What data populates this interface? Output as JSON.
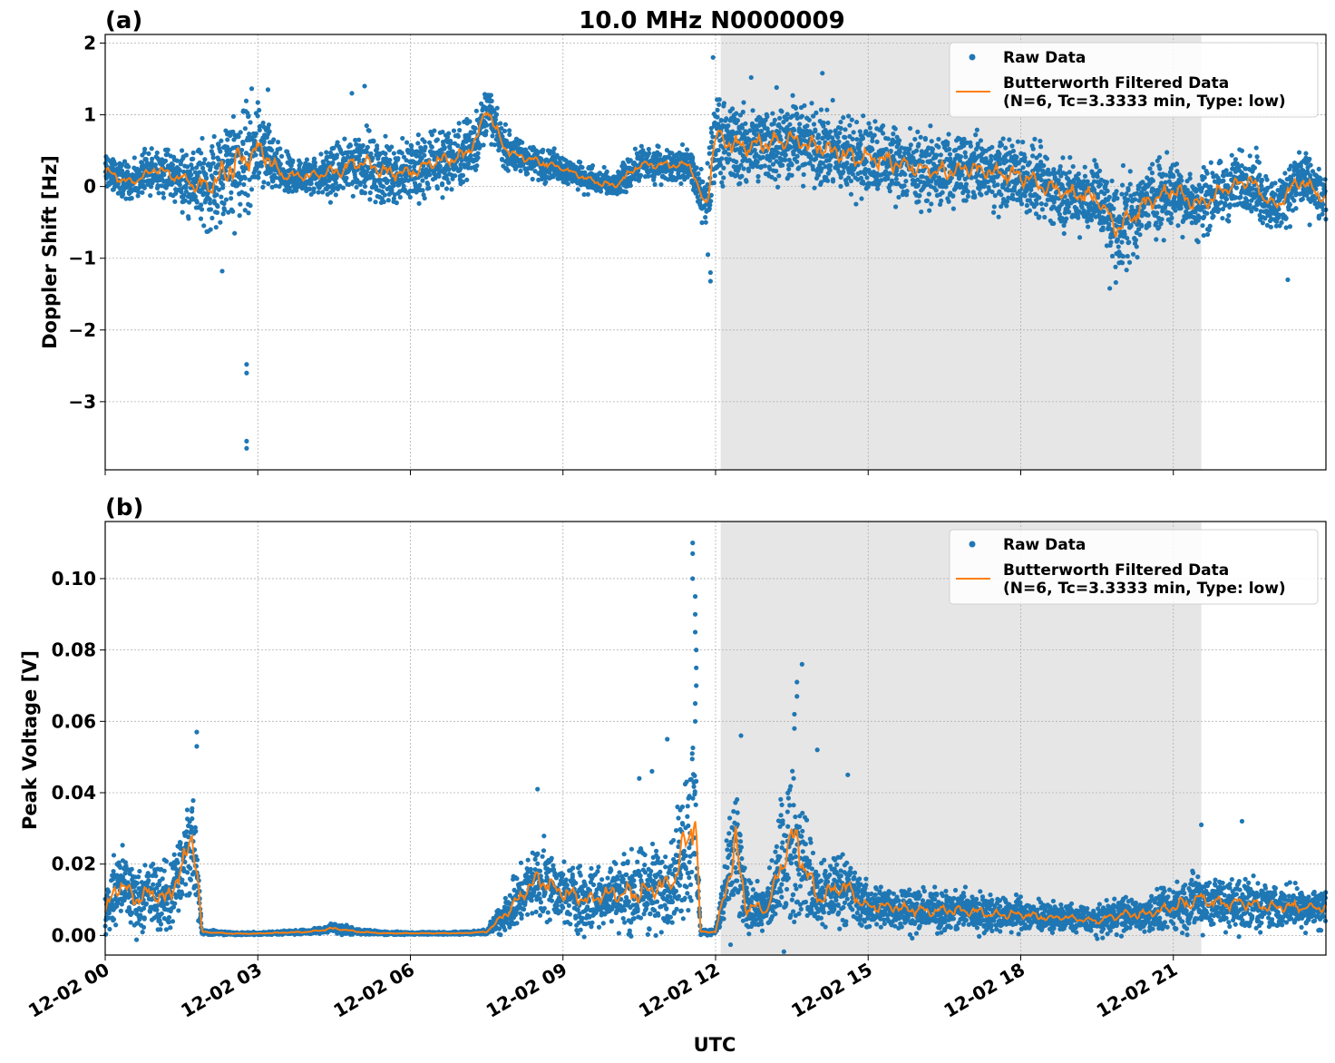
{
  "figure": {
    "title": "10.0 MHz N0000009",
    "xlabel": "UTC"
  },
  "colors": {
    "raw": "#1f77b4",
    "filtered": "#ff7f0e",
    "shade": "#e6e6e6",
    "grid": "#b0b0b0"
  },
  "legend": {
    "raw_label": "Raw Data",
    "filtered_label_line1": "Butterworth Filtered Data",
    "filtered_label_line2": "(N=6, Tc=3.3333 min, Type: low)"
  },
  "chart_data": [
    {
      "type": "scatter",
      "panel_label": "(a)",
      "ylabel": "Doppler Shift [Hz]",
      "xlim_hours": [
        0,
        24
      ],
      "ylim": [
        -3.95,
        2.12
      ],
      "yticks": [
        2,
        1,
        0,
        -1,
        -2,
        -3
      ],
      "ytick_labels": [
        "2",
        "1",
        "0",
        "−1",
        "−2",
        "−3"
      ],
      "grid": true,
      "legend_position": "top-right",
      "shaded_interval_hours": [
        12.1,
        21.55
      ],
      "series": [
        {
          "name": "Raw Data",
          "kind": "points",
          "x_hours": [
            0,
            0.5,
            1,
            1.5,
            2,
            2.3,
            2.5,
            2.75,
            3,
            3.5,
            4,
            4.5,
            5,
            5.5,
            6,
            6.5,
            7,
            7.3,
            7.5,
            7.8,
            8,
            8.5,
            9,
            9.5,
            10,
            10.5,
            11,
            11.5,
            11.8,
            11.9,
            12,
            12.5,
            13,
            13.5,
            14,
            14.5,
            15,
            15.5,
            16,
            16.5,
            17,
            17.5,
            18,
            18.5,
            19,
            19.5,
            19.9,
            20.5,
            21,
            21.5,
            22,
            22.5,
            23,
            23.5,
            24
          ],
          "y_center": [
            0.2,
            0.05,
            0.25,
            0.1,
            0.0,
            0.15,
            0.3,
            0.4,
            0.55,
            0.15,
            0.15,
            0.2,
            0.35,
            0.2,
            0.2,
            0.35,
            0.4,
            0.65,
            1.1,
            0.6,
            0.45,
            0.35,
            0.25,
            0.1,
            0.0,
            0.3,
            0.3,
            0.3,
            -0.3,
            0.2,
            0.7,
            0.55,
            0.6,
            0.65,
            0.55,
            0.45,
            0.4,
            0.35,
            0.25,
            0.2,
            0.25,
            0.2,
            0.15,
            0.0,
            -0.1,
            -0.15,
            -0.6,
            -0.2,
            -0.05,
            -0.25,
            -0.05,
            0.1,
            -0.3,
            0.1,
            -0.2
          ],
          "y_spread": [
            0.25,
            0.2,
            0.25,
            0.3,
            0.5,
            0.6,
            0.7,
            0.7,
            0.5,
            0.25,
            0.2,
            0.3,
            0.4,
            0.35,
            0.4,
            0.4,
            0.35,
            0.35,
            0.3,
            0.25,
            0.2,
            0.2,
            0.15,
            0.15,
            0.15,
            0.2,
            0.2,
            0.2,
            0.3,
            0.6,
            0.5,
            0.45,
            0.45,
            0.45,
            0.45,
            0.45,
            0.45,
            0.45,
            0.4,
            0.4,
            0.4,
            0.4,
            0.4,
            0.4,
            0.4,
            0.45,
            0.5,
            0.45,
            0.4,
            0.4,
            0.35,
            0.35,
            0.35,
            0.35,
            0.3
          ]
        },
        {
          "name": "Butterworth Filtered Data",
          "kind": "line",
          "x_hours": [
            0,
            0.5,
            1,
            1.5,
            2,
            2.3,
            2.5,
            2.75,
            3,
            3.5,
            4,
            4.5,
            5,
            5.5,
            6,
            6.5,
            7,
            7.3,
            7.5,
            7.8,
            8,
            8.5,
            9,
            9.5,
            10,
            10.5,
            11,
            11.5,
            11.8,
            11.9,
            12,
            12.5,
            13,
            13.5,
            14,
            14.5,
            15,
            15.5,
            16,
            16.5,
            17,
            17.5,
            18,
            18.5,
            19,
            19.5,
            19.9,
            20.5,
            21,
            21.5,
            22,
            22.5,
            23,
            23.5,
            24
          ],
          "y": [
            0.2,
            0.05,
            0.25,
            0.1,
            0.0,
            0.15,
            0.3,
            0.4,
            0.55,
            0.15,
            0.15,
            0.2,
            0.35,
            0.2,
            0.2,
            0.35,
            0.4,
            0.65,
            1.1,
            0.6,
            0.45,
            0.35,
            0.25,
            0.1,
            0.0,
            0.3,
            0.3,
            0.3,
            -0.3,
            0.2,
            0.7,
            0.55,
            0.6,
            0.65,
            0.55,
            0.45,
            0.4,
            0.35,
            0.25,
            0.2,
            0.25,
            0.2,
            0.15,
            0.0,
            -0.1,
            -0.15,
            -0.6,
            -0.2,
            -0.05,
            -0.25,
            -0.05,
            0.1,
            -0.3,
            0.1,
            -0.2
          ]
        }
      ],
      "outliers": [
        {
          "x_hours": 2.78,
          "y": -2.48
        },
        {
          "x_hours": 2.78,
          "y": -2.6
        },
        {
          "x_hours": 2.78,
          "y": -3.55
        },
        {
          "x_hours": 2.78,
          "y": -3.65
        },
        {
          "x_hours": 11.9,
          "y": -1.2
        },
        {
          "x_hours": 11.9,
          "y": -1.32
        },
        {
          "x_hours": 11.85,
          "y": -0.95
        },
        {
          "x_hours": 19.75,
          "y": -1.42
        },
        {
          "x_hours": 23.25,
          "y": -1.3
        },
        {
          "x_hours": 2.3,
          "y": -1.18
        },
        {
          "x_hours": 11.95,
          "y": 1.8
        },
        {
          "x_hours": 14.1,
          "y": 1.58
        },
        {
          "x_hours": 3.2,
          "y": 1.35
        },
        {
          "x_hours": 5.1,
          "y": 1.4
        },
        {
          "x_hours": 4.85,
          "y": 1.3
        },
        {
          "x_hours": 13.2,
          "y": 1.38
        },
        {
          "x_hours": 12.7,
          "y": 1.52
        }
      ]
    },
    {
      "type": "scatter",
      "panel_label": "(b)",
      "ylabel": "Peak Voltage [V]",
      "xlim_hours": [
        0,
        24
      ],
      "ylim": [
        -0.0055,
        0.116
      ],
      "yticks": [
        0.0,
        0.02,
        0.04,
        0.06,
        0.08,
        0.1
      ],
      "ytick_labels": [
        "0.00",
        "0.02",
        "0.04",
        "0.06",
        "0.08",
        "0.10"
      ],
      "grid": true,
      "legend_position": "top-right",
      "shaded_interval_hours": [
        12.1,
        21.55
      ],
      "series": [
        {
          "name": "Raw Data",
          "kind": "points",
          "x_hours": [
            0,
            0.3,
            0.6,
            0.9,
            1.2,
            1.5,
            1.7,
            1.8,
            1.9,
            2.5,
            3,
            3.5,
            4,
            4.5,
            5,
            5.5,
            6,
            6.5,
            7,
            7.5,
            8,
            8.5,
            9,
            9.5,
            10,
            10.5,
            11,
            11.2,
            11.5,
            11.6,
            11.7,
            12,
            12.4,
            12.6,
            13,
            13.5,
            13.7,
            14,
            14.5,
            15,
            15.5,
            16,
            16.5,
            17,
            17.5,
            18,
            18.5,
            19,
            19.5,
            20,
            20.5,
            21,
            21.5,
            22,
            22.5,
            23,
            23.5,
            24
          ],
          "y_center": [
            0.007,
            0.015,
            0.01,
            0.012,
            0.01,
            0.018,
            0.028,
            0.02,
            0.001,
            0.0005,
            0.0005,
            0.0008,
            0.001,
            0.002,
            0.001,
            0.0006,
            0.0006,
            0.0006,
            0.0006,
            0.001,
            0.008,
            0.016,
            0.012,
            0.01,
            0.012,
            0.012,
            0.014,
            0.016,
            0.03,
            0.035,
            0.001,
            0.001,
            0.025,
            0.008,
            0.007,
            0.028,
            0.022,
            0.01,
            0.014,
            0.008,
            0.008,
            0.007,
            0.007,
            0.007,
            0.006,
            0.006,
            0.005,
            0.005,
            0.004,
            0.006,
            0.006,
            0.008,
            0.01,
            0.009,
            0.009,
            0.008,
            0.008,
            0.008
          ],
          "y_spread": [
            0.006,
            0.008,
            0.008,
            0.008,
            0.008,
            0.01,
            0.015,
            0.01,
            0.0006,
            0.0003,
            0.0003,
            0.0004,
            0.0006,
            0.0012,
            0.0006,
            0.0004,
            0.0003,
            0.0003,
            0.0003,
            0.0006,
            0.006,
            0.008,
            0.007,
            0.007,
            0.008,
            0.01,
            0.01,
            0.01,
            0.022,
            0.025,
            0.0006,
            0.0006,
            0.018,
            0.006,
            0.005,
            0.022,
            0.015,
            0.007,
            0.008,
            0.005,
            0.005,
            0.005,
            0.005,
            0.005,
            0.004,
            0.004,
            0.003,
            0.003,
            0.003,
            0.004,
            0.004,
            0.005,
            0.007,
            0.006,
            0.006,
            0.005,
            0.005,
            0.005
          ]
        },
        {
          "name": "Butterworth Filtered Data",
          "kind": "line",
          "x_hours": [
            0,
            0.3,
            0.6,
            0.9,
            1.2,
            1.5,
            1.7,
            1.8,
            1.9,
            2.5,
            3,
            3.5,
            4,
            4.5,
            5,
            5.5,
            6,
            6.5,
            7,
            7.5,
            8,
            8.5,
            9,
            9.5,
            10,
            10.5,
            11,
            11.2,
            11.5,
            11.6,
            11.7,
            12,
            12.4,
            12.6,
            13,
            13.5,
            13.7,
            14,
            14.5,
            15,
            15.5,
            16,
            16.5,
            17,
            17.5,
            18,
            18.5,
            19,
            19.5,
            20,
            20.5,
            21,
            21.5,
            22,
            22.5,
            23,
            23.5,
            24
          ],
          "y": [
            0.007,
            0.015,
            0.01,
            0.012,
            0.01,
            0.018,
            0.028,
            0.02,
            0.001,
            0.0005,
            0.0005,
            0.0008,
            0.001,
            0.002,
            0.001,
            0.0006,
            0.0006,
            0.0006,
            0.0006,
            0.001,
            0.008,
            0.016,
            0.012,
            0.01,
            0.012,
            0.012,
            0.014,
            0.016,
            0.03,
            0.035,
            0.001,
            0.001,
            0.025,
            0.008,
            0.007,
            0.028,
            0.022,
            0.01,
            0.014,
            0.008,
            0.008,
            0.007,
            0.007,
            0.007,
            0.006,
            0.006,
            0.005,
            0.005,
            0.004,
            0.006,
            0.006,
            0.008,
            0.01,
            0.009,
            0.009,
            0.008,
            0.008,
            0.008
          ]
        }
      ],
      "outliers": [
        {
          "x_hours": 11.55,
          "y": 0.11
        },
        {
          "x_hours": 11.55,
          "y": 0.107
        },
        {
          "x_hours": 11.55,
          "y": 0.1
        },
        {
          "x_hours": 11.6,
          "y": 0.095
        },
        {
          "x_hours": 11.6,
          "y": 0.09
        },
        {
          "x_hours": 11.6,
          "y": 0.085
        },
        {
          "x_hours": 11.62,
          "y": 0.08
        },
        {
          "x_hours": 11.62,
          "y": 0.075
        },
        {
          "x_hours": 11.62,
          "y": 0.07
        },
        {
          "x_hours": 11.6,
          "y": 0.065
        },
        {
          "x_hours": 11.6,
          "y": 0.06
        },
        {
          "x_hours": 13.7,
          "y": 0.076
        },
        {
          "x_hours": 13.6,
          "y": 0.071
        },
        {
          "x_hours": 13.6,
          "y": 0.067
        },
        {
          "x_hours": 13.55,
          "y": 0.062
        },
        {
          "x_hours": 13.55,
          "y": 0.058
        },
        {
          "x_hours": 1.8,
          "y": 0.057
        },
        {
          "x_hours": 1.8,
          "y": 0.053
        },
        {
          "x_hours": 11.05,
          "y": 0.055
        },
        {
          "x_hours": 12.5,
          "y": 0.056
        },
        {
          "x_hours": 8.5,
          "y": 0.041
        },
        {
          "x_hours": 14.0,
          "y": 0.052
        },
        {
          "x_hours": 14.6,
          "y": 0.045
        },
        {
          "x_hours": 22.35,
          "y": 0.032
        },
        {
          "x_hours": 21.55,
          "y": 0.031
        },
        {
          "x_hours": 10.5,
          "y": 0.044
        },
        {
          "x_hours": 10.75,
          "y": 0.046
        }
      ]
    }
  ],
  "x_axis": {
    "ticks_hours": [
      0,
      3,
      6,
      9,
      12,
      15,
      18,
      21
    ],
    "tick_labels": [
      "12-02 00",
      "12-02 03",
      "12-02 06",
      "12-02 09",
      "12-02 12",
      "12-02 15",
      "12-02 18",
      "12-02 21"
    ]
  }
}
